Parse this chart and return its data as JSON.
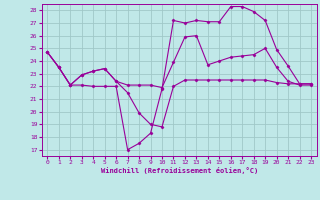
{
  "background_color": "#c0e8e8",
  "grid_color": "#a0c8c8",
  "line_color": "#990099",
  "marker": "D",
  "marker_size": 1.5,
  "line_width": 0.8,
  "xlim": [
    -0.5,
    23.5
  ],
  "ylim": [
    16.5,
    28.5
  ],
  "yticks": [
    17,
    18,
    19,
    20,
    21,
    22,
    23,
    24,
    25,
    26,
    27,
    28
  ],
  "xticks": [
    0,
    1,
    2,
    3,
    4,
    5,
    6,
    7,
    8,
    9,
    10,
    11,
    12,
    13,
    14,
    15,
    16,
    17,
    18,
    19,
    20,
    21,
    22,
    23
  ],
  "xlabel": "Windchill (Refroidissement éolien,°C)",
  "tick_fontsize": 4.5,
  "label_fontsize": 5.0,
  "lines": [
    [
      24.7,
      23.5,
      22.1,
      22.1,
      22.0,
      22.0,
      22.0,
      17.0,
      17.5,
      18.3,
      21.8,
      27.2,
      27.0,
      27.2,
      27.1,
      27.1,
      28.3,
      28.3,
      27.9,
      27.2,
      24.9,
      23.6,
      22.2,
      22.2
    ],
    [
      24.7,
      23.5,
      22.1,
      22.9,
      23.2,
      23.4,
      22.4,
      22.1,
      22.1,
      22.1,
      21.9,
      23.9,
      25.9,
      26.0,
      23.7,
      24.0,
      24.3,
      24.4,
      24.5,
      25.0,
      23.5,
      22.4,
      22.1,
      22.1
    ],
    [
      24.7,
      23.5,
      22.1,
      22.9,
      23.2,
      23.4,
      22.4,
      21.5,
      19.9,
      19.0,
      18.8,
      22.0,
      22.5,
      22.5,
      22.5,
      22.5,
      22.5,
      22.5,
      22.5,
      22.5,
      22.3,
      22.2,
      22.2,
      22.2
    ]
  ]
}
